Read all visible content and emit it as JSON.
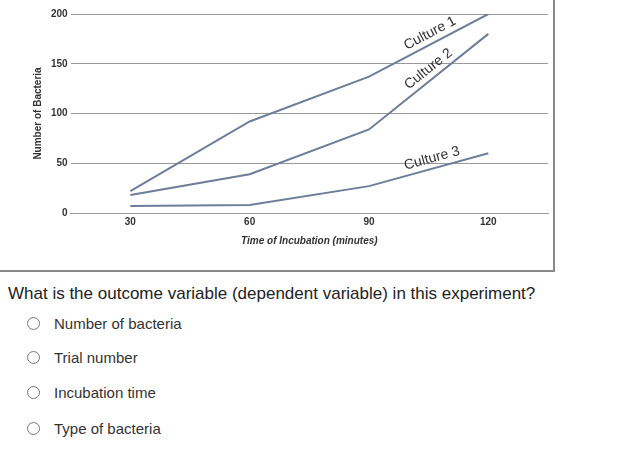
{
  "chart_data": {
    "type": "line",
    "x_label": "Time of Incubation (minutes)",
    "y_label": "Number of Bacteria",
    "x": [
      30,
      60,
      90,
      120
    ],
    "series": [
      {
        "name": "Culture 1",
        "color": "#6f7d99",
        "values": [
          22,
          92,
          137,
          200
        ]
      },
      {
        "name": "Culture 2",
        "color": "#6f7d99",
        "values": [
          18,
          39,
          84,
          180
        ]
      },
      {
        "name": "Culture 3",
        "color": "#6f7d99",
        "values": [
          7,
          8,
          27,
          60
        ]
      }
    ],
    "xlim": [
      15,
      135
    ],
    "xticks": [
      30,
      60,
      90,
      120
    ],
    "ylim": [
      0,
      200
    ],
    "yticks": [
      0,
      50,
      100,
      150,
      200
    ],
    "grid": "y"
  },
  "question": "What is the outcome variable (dependent variable) in this experiment?",
  "options": [
    "Number of bacteria",
    "Trial number",
    "Incubation time",
    "Type of bacteria"
  ]
}
